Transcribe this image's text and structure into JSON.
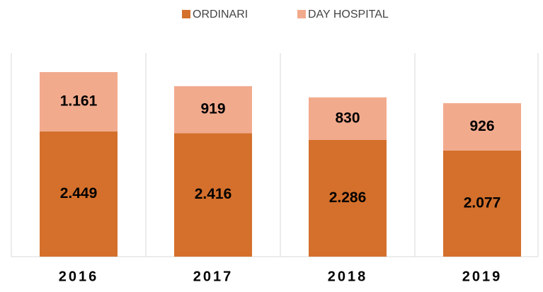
{
  "chart_data": {
    "type": "stacked_bar",
    "categories": [
      "2016",
      "2017",
      "2018",
      "2019"
    ],
    "series": [
      {
        "name": "ORDINARI",
        "color": "#d4702c",
        "values": [
          2449,
          2416,
          2286,
          2077
        ],
        "value_labels": [
          "2.449",
          "2.416",
          "2.286",
          "2.077"
        ]
      },
      {
        "name": "DAY HOSPITAL",
        "color": "#f2aa8d",
        "values": [
          1161,
          919,
          830,
          926
        ],
        "value_labels": [
          "1.161",
          "919",
          "830",
          "926"
        ]
      }
    ],
    "legend": "top"
  }
}
